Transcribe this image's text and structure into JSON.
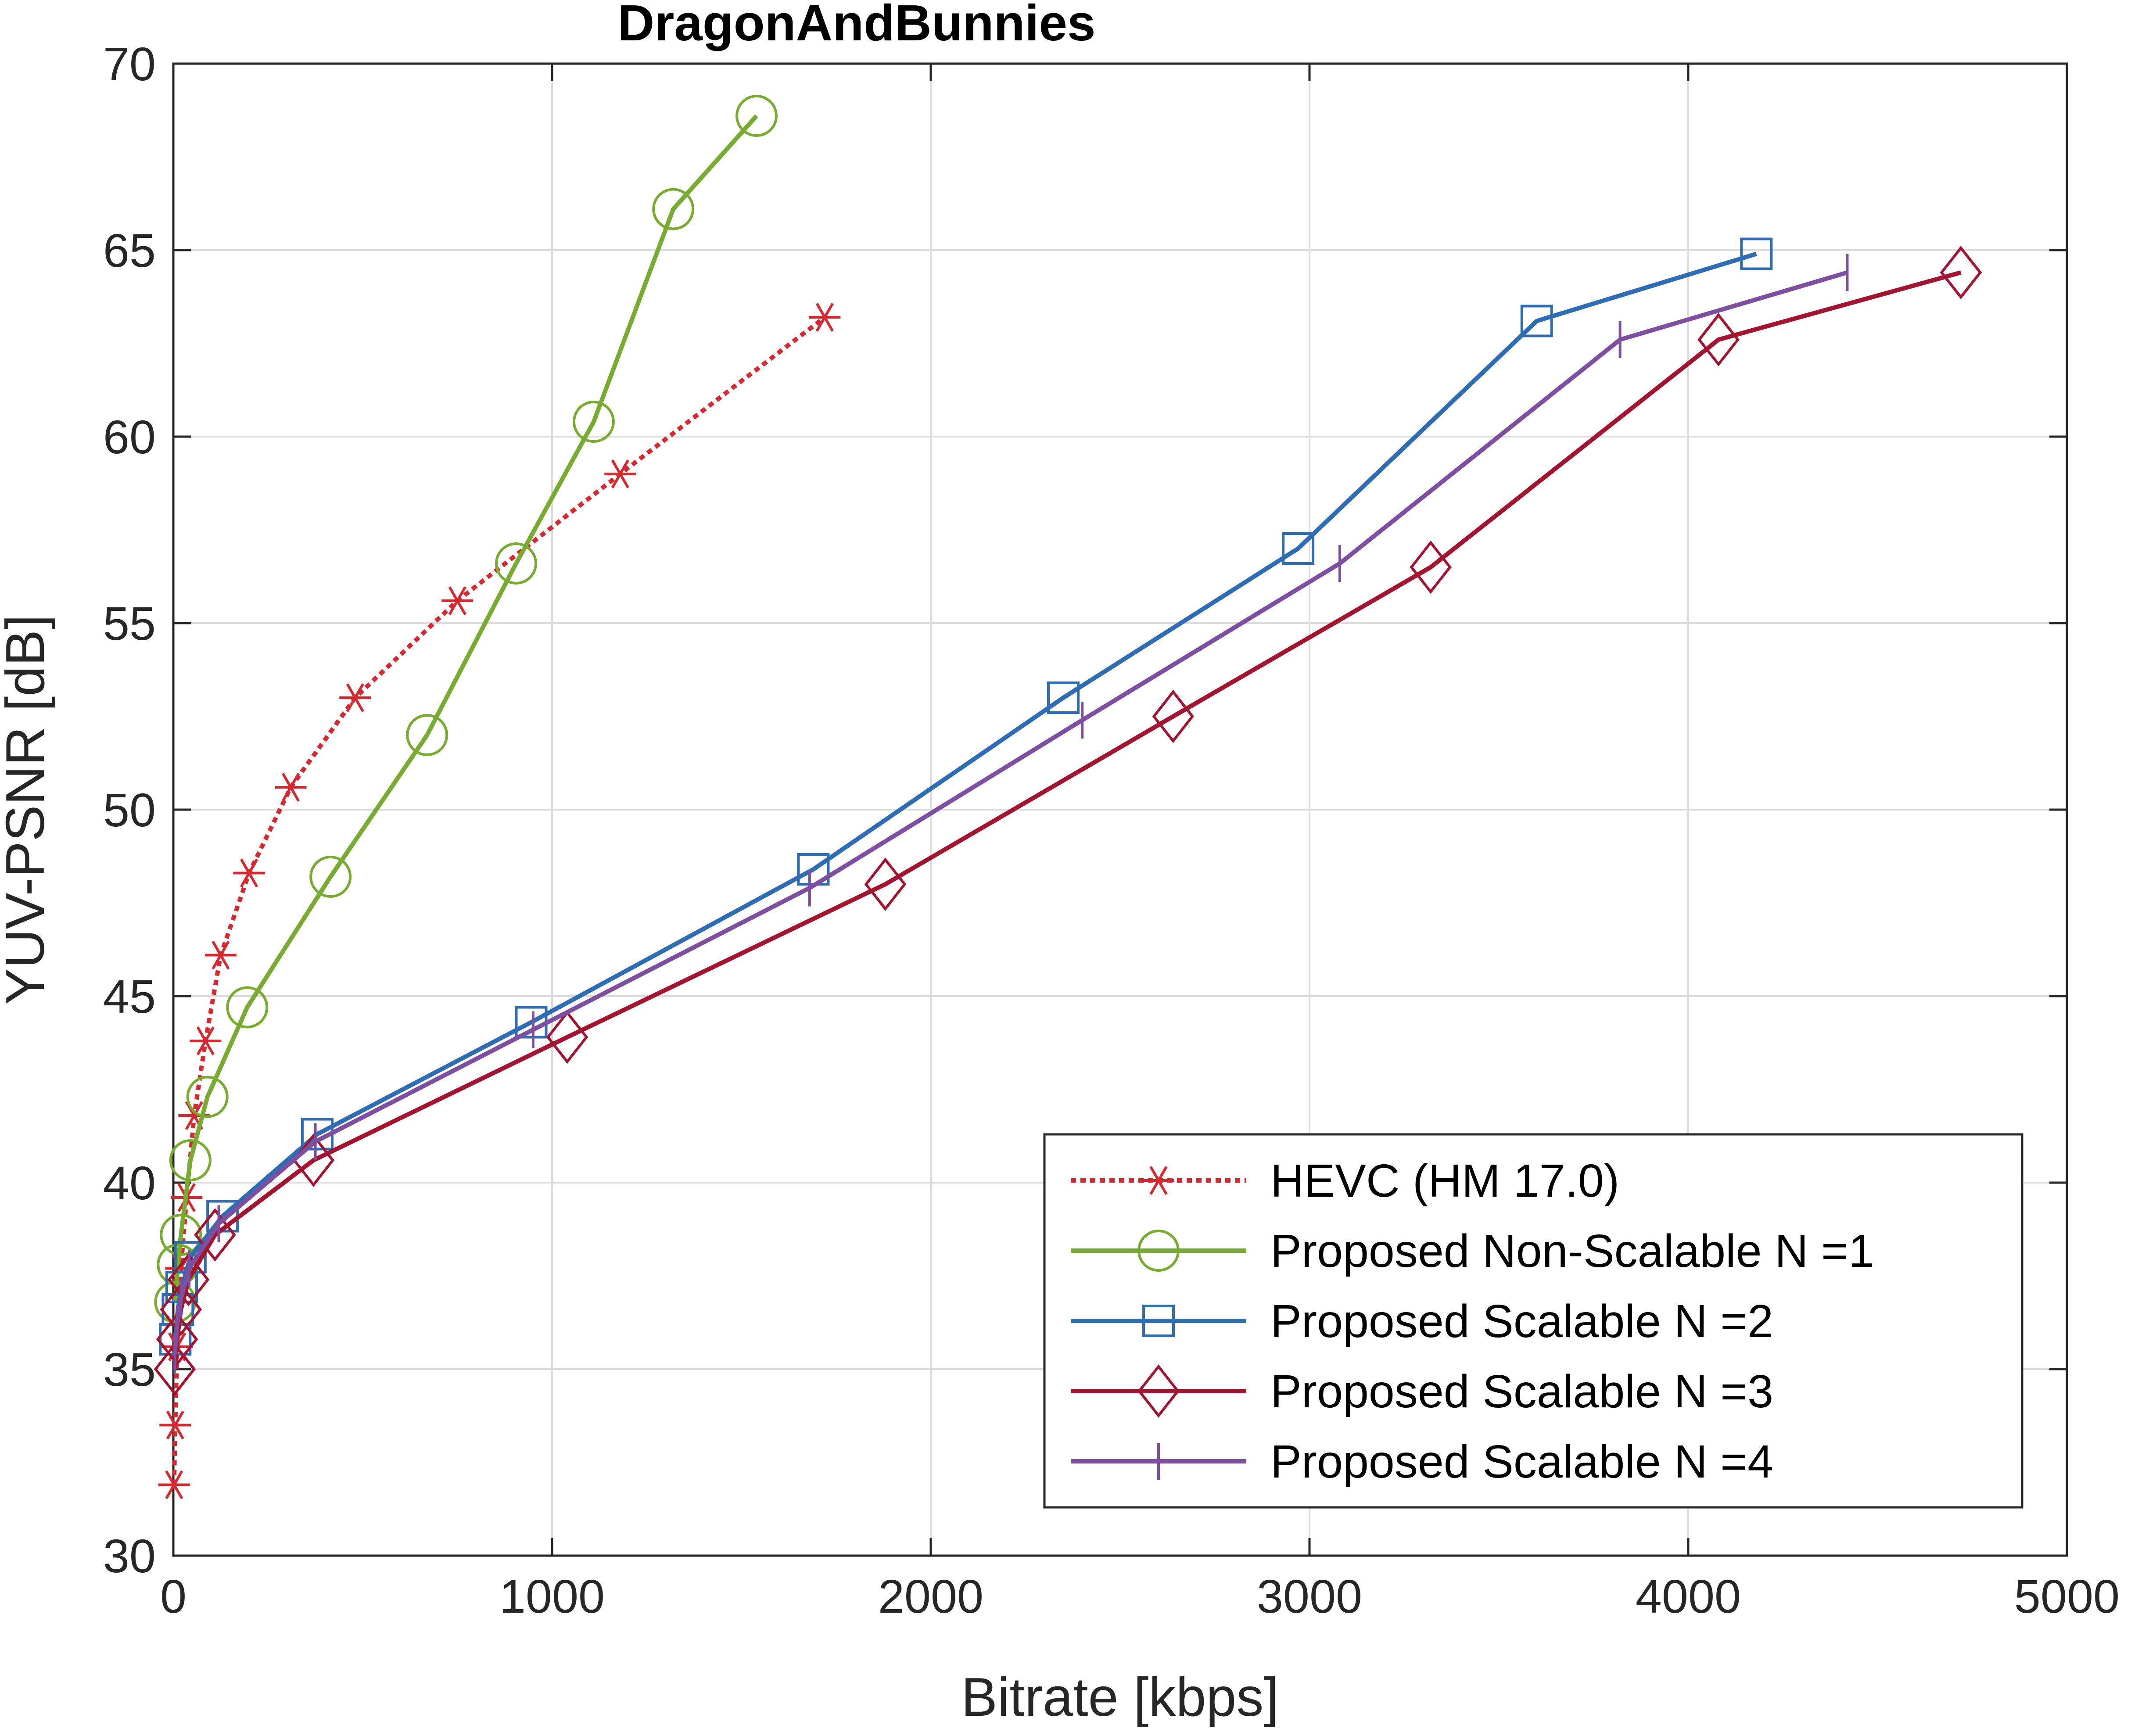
{
  "chart_data": {
    "type": "line",
    "title": "DragonAndBunnies",
    "xlabel": "Bitrate [kbps]",
    "ylabel": "YUV-PSNR [dB]",
    "xlim": [
      0,
      5000
    ],
    "ylim": [
      30,
      70
    ],
    "xticks": [
      0,
      1000,
      2000,
      3000,
      4000,
      5000
    ],
    "yticks": [
      30,
      35,
      40,
      45,
      50,
      55,
      60,
      65,
      70
    ],
    "xtick_labels": [
      "0",
      "1000",
      "2000",
      "3000",
      "4000",
      "5000"
    ],
    "ytick_labels": [
      "30",
      "35",
      "40",
      "45",
      "50",
      "55",
      "60",
      "65",
      "70"
    ],
    "grid": true,
    "legend_position": "bottom-right",
    "series": [
      {
        "name": "HEVC (HM 17.0)",
        "color": "#d7282f",
        "line_style": "dotted",
        "marker": "asterisk",
        "x": [
          2,
          5,
          10,
          20,
          35,
          55,
          85,
          125,
          200,
          310,
          480,
          750,
          1180,
          1720
        ],
        "y": [
          31.9,
          33.5,
          35.6,
          37.7,
          39.6,
          41.8,
          43.8,
          46.1,
          48.3,
          50.6,
          53.0,
          55.6,
          59.0,
          63.2
        ]
      },
      {
        "name": "Proposed Non-Scalable N =1",
        "color": "#77ac30",
        "line_style": "solid",
        "marker": "circle",
        "x": [
          5,
          12,
          20,
          45,
          90,
          195,
          415,
          670,
          905,
          1110,
          1320,
          1540
        ],
        "y": [
          36.8,
          37.8,
          38.6,
          40.6,
          42.3,
          44.7,
          48.2,
          52.0,
          56.6,
          60.4,
          66.1,
          68.6
        ]
      },
      {
        "name": "Proposed Scalable N =2",
        "color": "#2e6db4",
        "line_style": "solid",
        "marker": "square",
        "x": [
          5,
          12,
          22,
          45,
          130,
          380,
          945,
          1690,
          2350,
          2970,
          3600,
          4180
        ],
        "y": [
          35.8,
          36.6,
          37.2,
          38.0,
          39.1,
          41.3,
          44.3,
          48.4,
          53.0,
          57.0,
          63.1,
          64.9
        ]
      },
      {
        "name": "Proposed Scalable N =3",
        "color": "#a2142f",
        "line_style": "solid",
        "marker": "diamond",
        "x": [
          4,
          10,
          20,
          40,
          110,
          370,
          1040,
          1880,
          2640,
          3320,
          4080,
          4720
        ],
        "y": [
          35.0,
          35.8,
          36.6,
          37.4,
          38.6,
          40.6,
          43.9,
          48.0,
          52.5,
          56.5,
          62.6,
          64.4
        ]
      },
      {
        "name": "Proposed Scalable N =4",
        "color": "#7e4fa0",
        "line_style": "solid",
        "marker": "vline",
        "x": [
          4,
          10,
          20,
          42,
          120,
          375,
          950,
          1680,
          2400,
          3080,
          3820,
          4420
        ],
        "y": [
          35.4,
          36.2,
          36.9,
          37.7,
          38.9,
          41.1,
          44.1,
          47.9,
          52.4,
          56.6,
          62.6,
          64.4
        ]
      }
    ]
  }
}
